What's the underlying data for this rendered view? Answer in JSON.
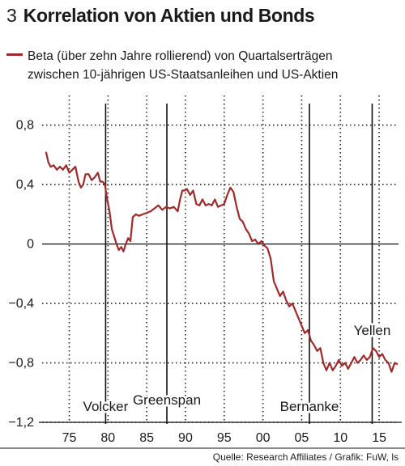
{
  "header": {
    "number": "3",
    "title": "Korrelation von Aktien und Bonds"
  },
  "legend": {
    "line1": "Beta (über zehn Jahre rollierend) von Quartalserträgen",
    "line2": "zwischen 10-jährigen US-Staatsanleihen und US-Aktien",
    "color": "#9e2b2b"
  },
  "source": "Quelle: Research Affiliates / Grafik: FuW, ls",
  "chart_data": {
    "type": "line",
    "xlim": [
      1971.5,
      2017.5
    ],
    "ylim": [
      -1.2,
      1.0
    ],
    "grid": true,
    "x_ticks": [
      75,
      80,
      85,
      90,
      95,
      0,
      5,
      10,
      15
    ],
    "x_tick_labels": [
      "75",
      "80",
      "85",
      "90",
      "95",
      "00",
      "05",
      "10",
      "15"
    ],
    "y_ticks": [
      0.8,
      0.4,
      0,
      -0.4,
      -0.8,
      -1.2
    ],
    "y_tick_labels": [
      "0,8",
      "0,4",
      "0",
      "−0,4",
      "−0,8",
      "−1,2"
    ],
    "annotations": [
      {
        "label": "Volcker",
        "x": 1979.7
      },
      {
        "label": "Greenspan",
        "x": 1987.6
      },
      {
        "label": "Bernanke",
        "x": 2006.0
      },
      {
        "label": "Yellen",
        "x": 2014.1
      }
    ],
    "series": [
      {
        "color": "#9e2b2b",
        "x": [
          1972.0,
          1972.3,
          1972.6,
          1973.0,
          1973.4,
          1973.8,
          1974.2,
          1974.6,
          1975.0,
          1975.4,
          1975.8,
          1976.2,
          1976.5,
          1976.8,
          1977.1,
          1977.5,
          1977.9,
          1978.3,
          1978.7,
          1979.0,
          1979.3,
          1979.6,
          1979.9,
          1980.2,
          1980.5,
          1980.8,
          1981.1,
          1981.4,
          1981.7,
          1982.0,
          1982.3,
          1982.6,
          1982.9,
          1983.2,
          1983.6,
          1984.0,
          1984.5,
          1985.0,
          1985.5,
          1986.0,
          1986.5,
          1987.0,
          1987.5,
          1988.0,
          1988.5,
          1989.0,
          1989.3,
          1989.6,
          1989.9,
          1990.2,
          1990.6,
          1991.0,
          1991.4,
          1991.8,
          1992.2,
          1992.6,
          1993.0,
          1993.4,
          1993.8,
          1994.2,
          1994.6,
          1995.0,
          1995.4,
          1995.8,
          1996.2,
          1996.6,
          1997.0,
          1997.4,
          1997.8,
          1998.2,
          1998.6,
          1999.0,
          1999.4,
          1999.8,
          2000.2,
          2000.6,
          2001.0,
          2001.4,
          2001.8,
          2002.2,
          2002.6,
          2003.0,
          2003.4,
          2003.8,
          2004.2,
          2004.6,
          2005.0,
          2005.4,
          2005.8,
          2006.2,
          2006.6,
          2007.0,
          2007.4,
          2007.8,
          2008.2,
          2008.6,
          2009.0,
          2009.4,
          2009.8,
          2010.2,
          2010.6,
          2011.0,
          2011.4,
          2011.8,
          2012.2,
          2012.6,
          2013.0,
          2013.4,
          2013.8,
          2014.2,
          2014.6,
          2015.0,
          2015.4,
          2015.8,
          2016.2,
          2016.6,
          2017.0,
          2017.4
        ],
        "y": [
          0.62,
          0.55,
          0.52,
          0.53,
          0.5,
          0.52,
          0.5,
          0.53,
          0.48,
          0.5,
          0.52,
          0.42,
          0.38,
          0.4,
          0.47,
          0.47,
          0.43,
          0.45,
          0.48,
          0.42,
          0.42,
          0.4,
          0.3,
          0.22,
          0.1,
          0.05,
          0.0,
          -0.04,
          -0.02,
          -0.05,
          0.0,
          0.04,
          0.02,
          0.18,
          0.2,
          0.19,
          0.2,
          0.21,
          0.22,
          0.24,
          0.26,
          0.23,
          0.25,
          0.24,
          0.25,
          0.22,
          0.3,
          0.36,
          0.36,
          0.37,
          0.33,
          0.36,
          0.27,
          0.26,
          0.3,
          0.26,
          0.27,
          0.26,
          0.3,
          0.25,
          0.26,
          0.27,
          0.33,
          0.38,
          0.35,
          0.25,
          0.17,
          0.15,
          0.1,
          0.07,
          0.02,
          0.03,
          0.0,
          0.02,
          -0.01,
          -0.03,
          -0.1,
          -0.25,
          -0.3,
          -0.35,
          -0.32,
          -0.38,
          -0.42,
          -0.4,
          -0.45,
          -0.5,
          -0.55,
          -0.6,
          -0.58,
          -0.65,
          -0.68,
          -0.72,
          -0.7,
          -0.8,
          -0.85,
          -0.8,
          -0.85,
          -0.82,
          -0.78,
          -0.82,
          -0.8,
          -0.84,
          -0.8,
          -0.76,
          -0.8,
          -0.78,
          -0.75,
          -0.78,
          -0.76,
          -0.7,
          -0.72,
          -0.76,
          -0.74,
          -0.78,
          -0.8,
          -0.86,
          -0.8,
          -0.81
        ]
      }
    ]
  }
}
